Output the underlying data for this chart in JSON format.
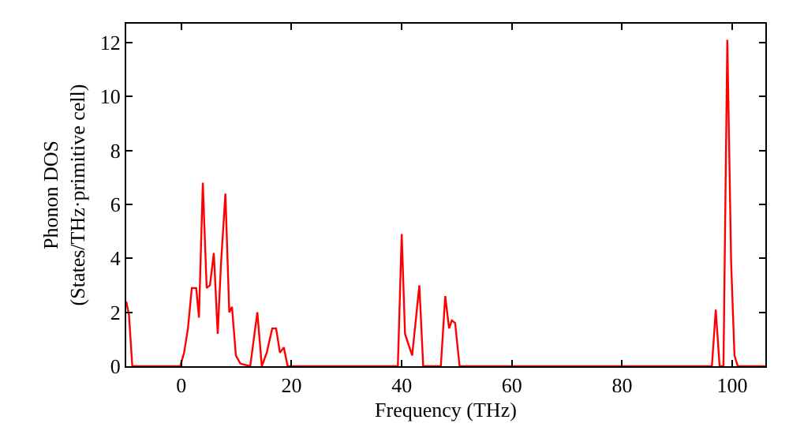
{
  "chart_data": {
    "type": "line",
    "xlabel": "Frequency (THz)",
    "ylabel": "Phonon DOS\n(States/THz·primitive cell)",
    "xlim": [
      -10,
      106
    ],
    "ylim": [
      0,
      12.7
    ],
    "xticks": [
      0,
      20,
      40,
      60,
      80,
      100
    ],
    "yticks": [
      0,
      2,
      4,
      6,
      8,
      10,
      12
    ],
    "marker": "none",
    "line_style": "solid",
    "series": [
      {
        "color": "#ff0000",
        "x": [
          -10,
          -9.5,
          -8.9,
          -0.2,
          0.5,
          1.2,
          1.9,
          2.7,
          3.2,
          3.9,
          4.6,
          5.2,
          5.9,
          6.6,
          7.2,
          8.0,
          8.7,
          9.2,
          9.9,
          10.7,
          12.5,
          13.8,
          14.6,
          15.5,
          16.5,
          17.2,
          17.9,
          18.6,
          19.3,
          39.3,
          40.0,
          40.6,
          41.9,
          43.2,
          43.9,
          47.1,
          47.9,
          48.6,
          49.1,
          49.7,
          50.5,
          96.3,
          97.0,
          97.7,
          98.4,
          99.1,
          99.8,
          100.4,
          101,
          106
        ],
        "values": [
          2.4,
          1.9,
          0,
          0,
          0.5,
          1.4,
          2.9,
          2.9,
          1.8,
          6.8,
          2.9,
          3.0,
          4.2,
          1.2,
          3.8,
          6.4,
          2.0,
          2.2,
          0.4,
          0.1,
          0,
          2.0,
          0,
          0.5,
          1.4,
          1.4,
          0.5,
          0.7,
          0,
          0,
          4.9,
          1.2,
          0.4,
          3.0,
          0,
          0,
          2.6,
          1.4,
          1.7,
          1.6,
          0,
          0,
          2.1,
          0,
          0,
          12.1,
          3.8,
          0.4,
          0,
          0
        ]
      }
    ]
  }
}
